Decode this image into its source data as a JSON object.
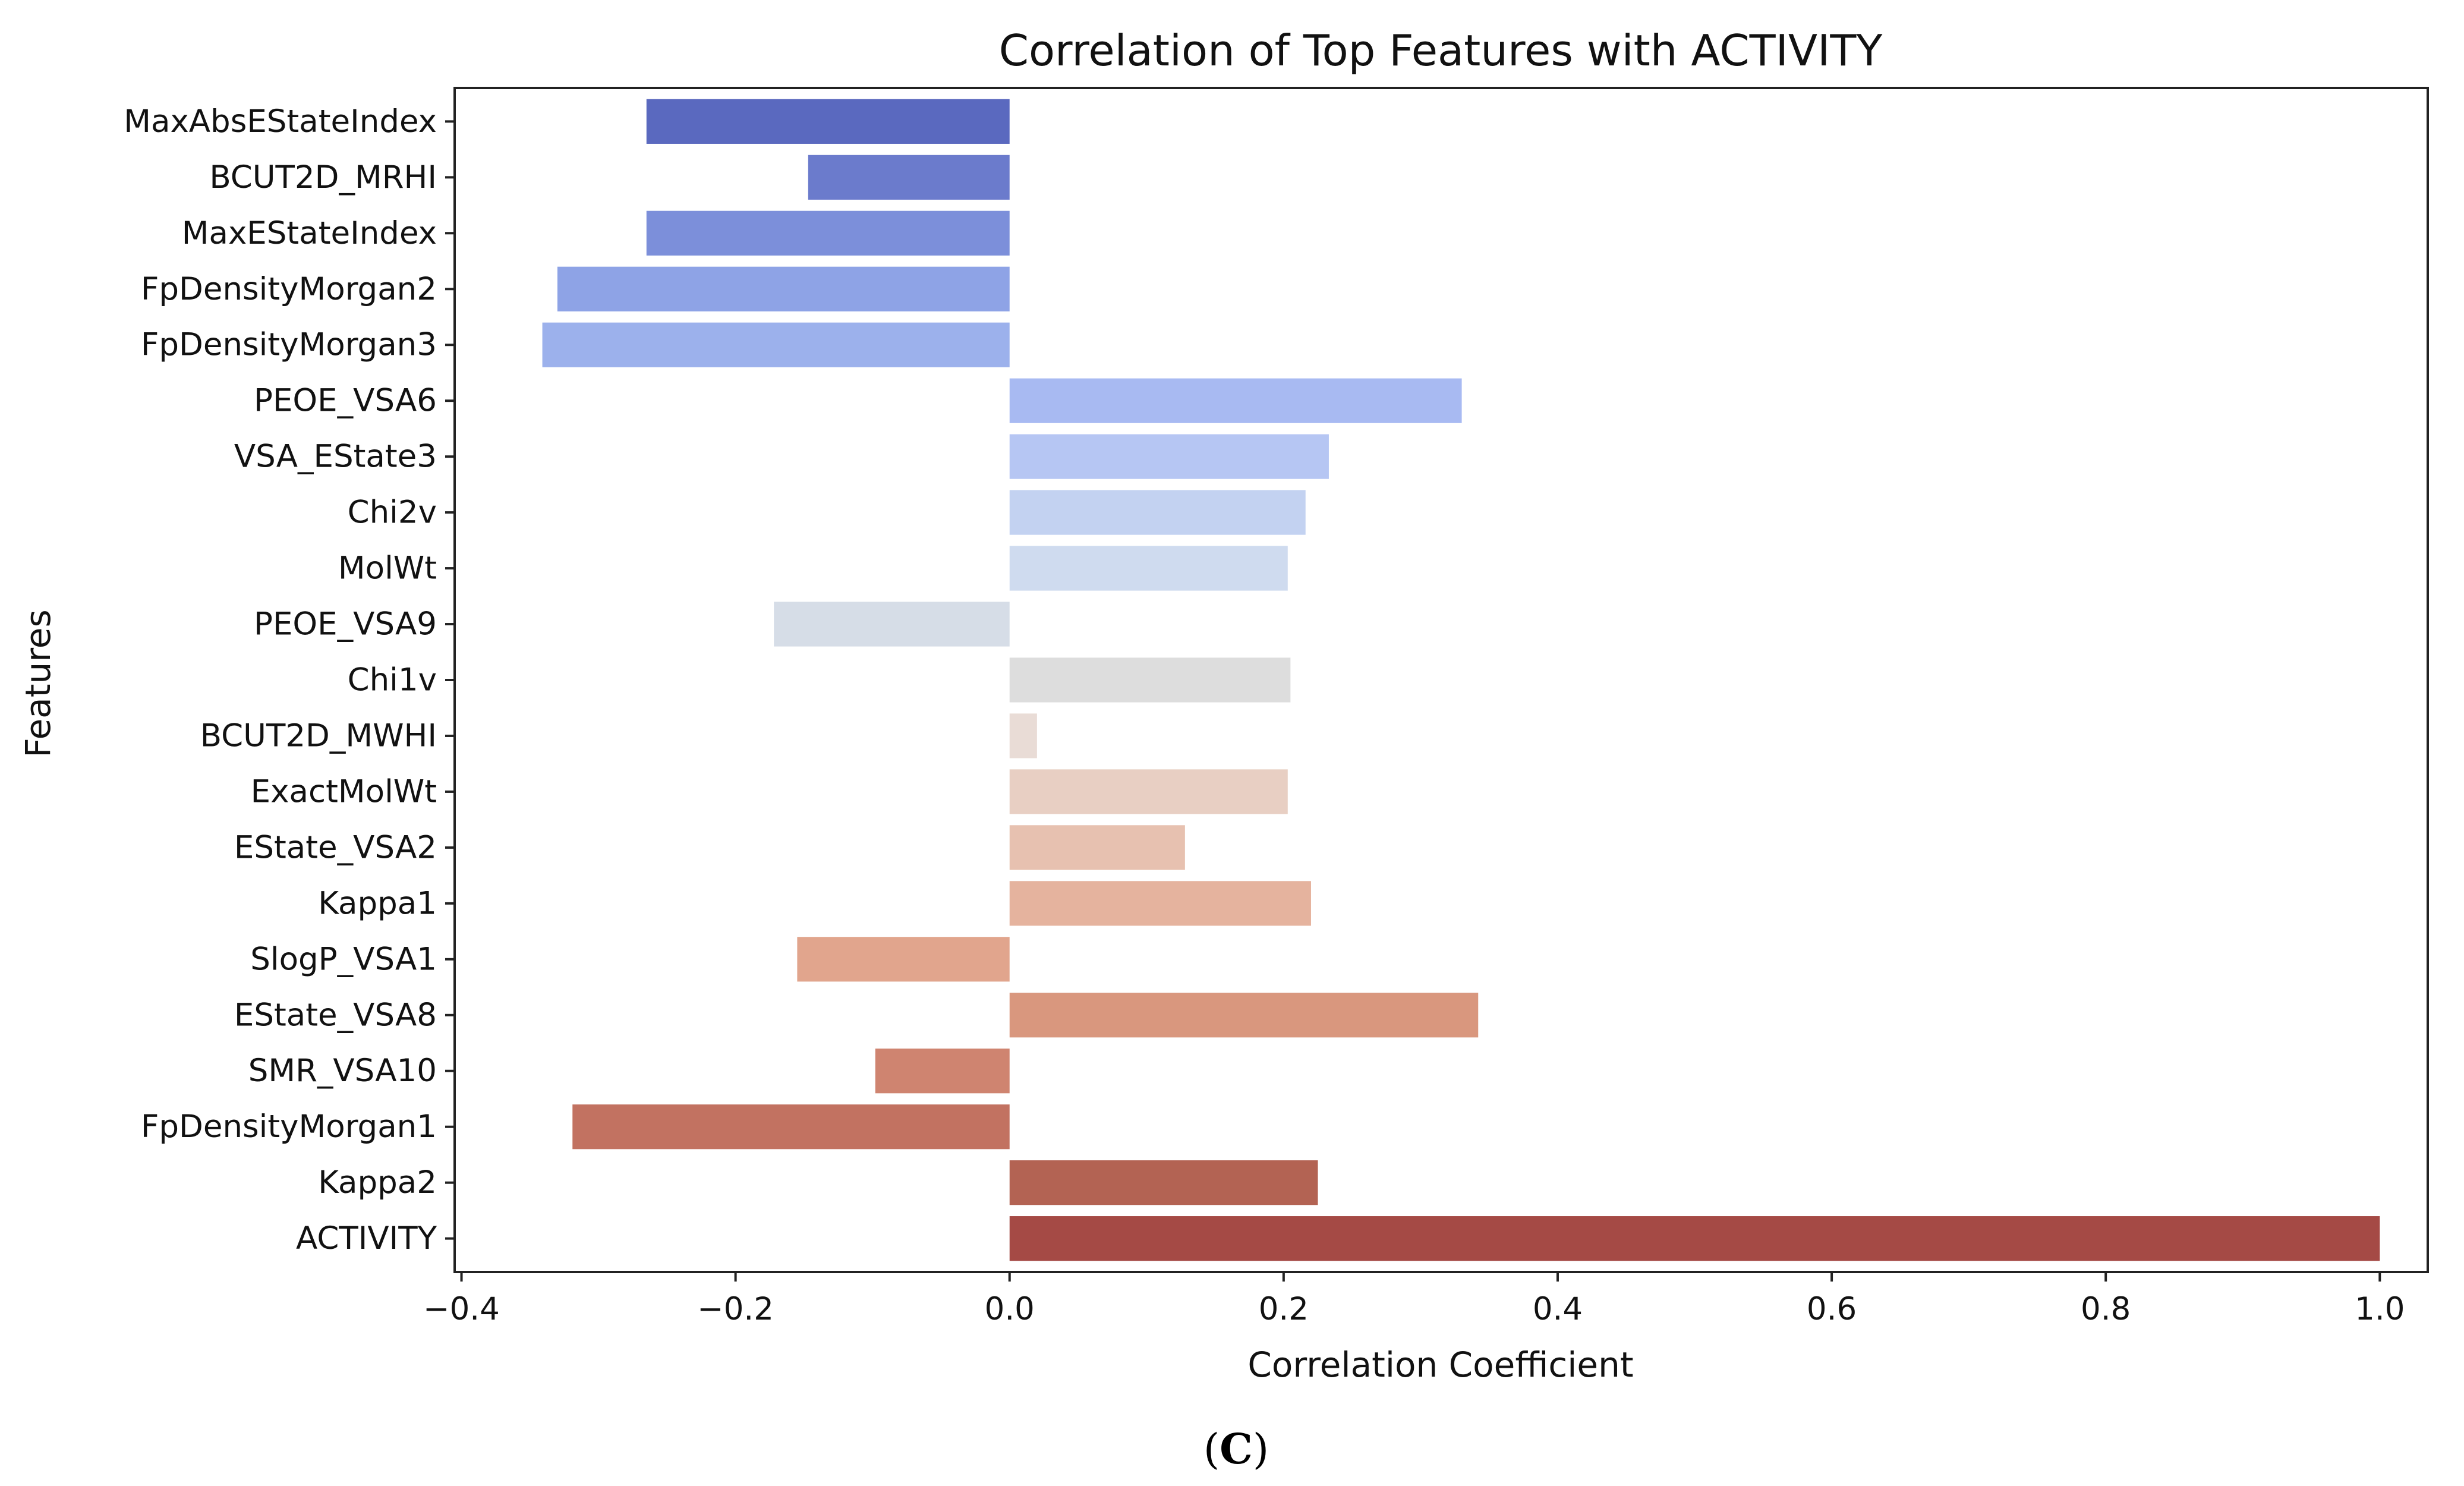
{
  "chart_data": {
    "type": "bar",
    "orientation": "horizontal",
    "title": "Correlation of Top Features with ACTIVITY",
    "xlabel": "Correlation Coefficient",
    "ylabel": "Features",
    "xlim": [
      -0.405,
      1.035
    ],
    "xticks": [
      -0.4,
      -0.2,
      0.0,
      0.2,
      0.4,
      0.6,
      0.8,
      1.0
    ],
    "xtick_labels": [
      "−0.4",
      "−0.2",
      "0.0",
      "0.2",
      "0.4",
      "0.6",
      "0.8",
      "1.0"
    ],
    "grid": false,
    "categories": [
      "MaxAbsEStateIndex",
      "BCUT2D_MRHI",
      "MaxEStateIndex",
      "FpDensityMorgan2",
      "FpDensityMorgan3",
      "PEOE_VSA6",
      "VSA_EState3",
      "Chi2v",
      "MolWt",
      "PEOE_VSA9",
      "Chi1v",
      "BCUT2D_MWHI",
      "ExactMolWt",
      "EState_VSA2",
      "Kappa1",
      "SlogP_VSA1",
      "EState_VSA8",
      "SMR_VSA10",
      "FpDensityMorgan1",
      "Kappa2",
      "ACTIVITY"
    ],
    "values": [
      -0.265,
      -0.147,
      -0.265,
      -0.33,
      -0.341,
      0.33,
      0.233,
      0.216,
      0.203,
      -0.172,
      0.205,
      0.02,
      0.203,
      0.128,
      0.22,
      -0.155,
      0.342,
      -0.098,
      -0.319,
      0.225,
      1.0
    ],
    "colors": [
      "#5a69bf",
      "#6b7bcc",
      "#7c8fda",
      "#8ea3e6",
      "#9cb1ec",
      "#a8baf2",
      "#b6c6f3",
      "#c3d2f1",
      "#cfdbef",
      "#d6dde7",
      "#dddddd",
      "#e9dcd6",
      "#e8cfc3",
      "#e7c1b0",
      "#e5b39e",
      "#e1a58d",
      "#d9977e",
      "#cf8470",
      "#c27261",
      "#b36353",
      "#a54a45"
    ]
  },
  "caption": {
    "open": "(",
    "letter": "C",
    "close": ")"
  }
}
